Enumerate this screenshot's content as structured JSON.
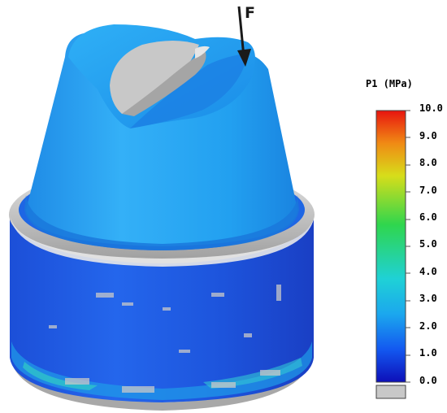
{
  "force_label": "F",
  "legend": {
    "title": "P1 (MPa)",
    "ticks": [
      "10.0",
      "9.0",
      "8.0",
      "7.0",
      "6.0",
      "5.0",
      "4.0",
      "3.0",
      "2.0",
      "1.0",
      "0.0"
    ],
    "colors": {
      "max": "#e8150f",
      "orange": "#f08a14",
      "yellow": "#d7dd1a",
      "green": "#2fd64d",
      "cyan": "#1fd1d6",
      "light_blue": "#1ba7ee",
      "blue": "#1358f0",
      "min": "#0d0fb8",
      "below_range": "#c8c8c8"
    }
  },
  "model_colors": {
    "abutment": "#1f9ff0",
    "abutment_dark": "#1468d6",
    "implant_body": "#1d55e0",
    "implant_dark": "#1735b8",
    "unloaded": "#c8c8c8"
  }
}
